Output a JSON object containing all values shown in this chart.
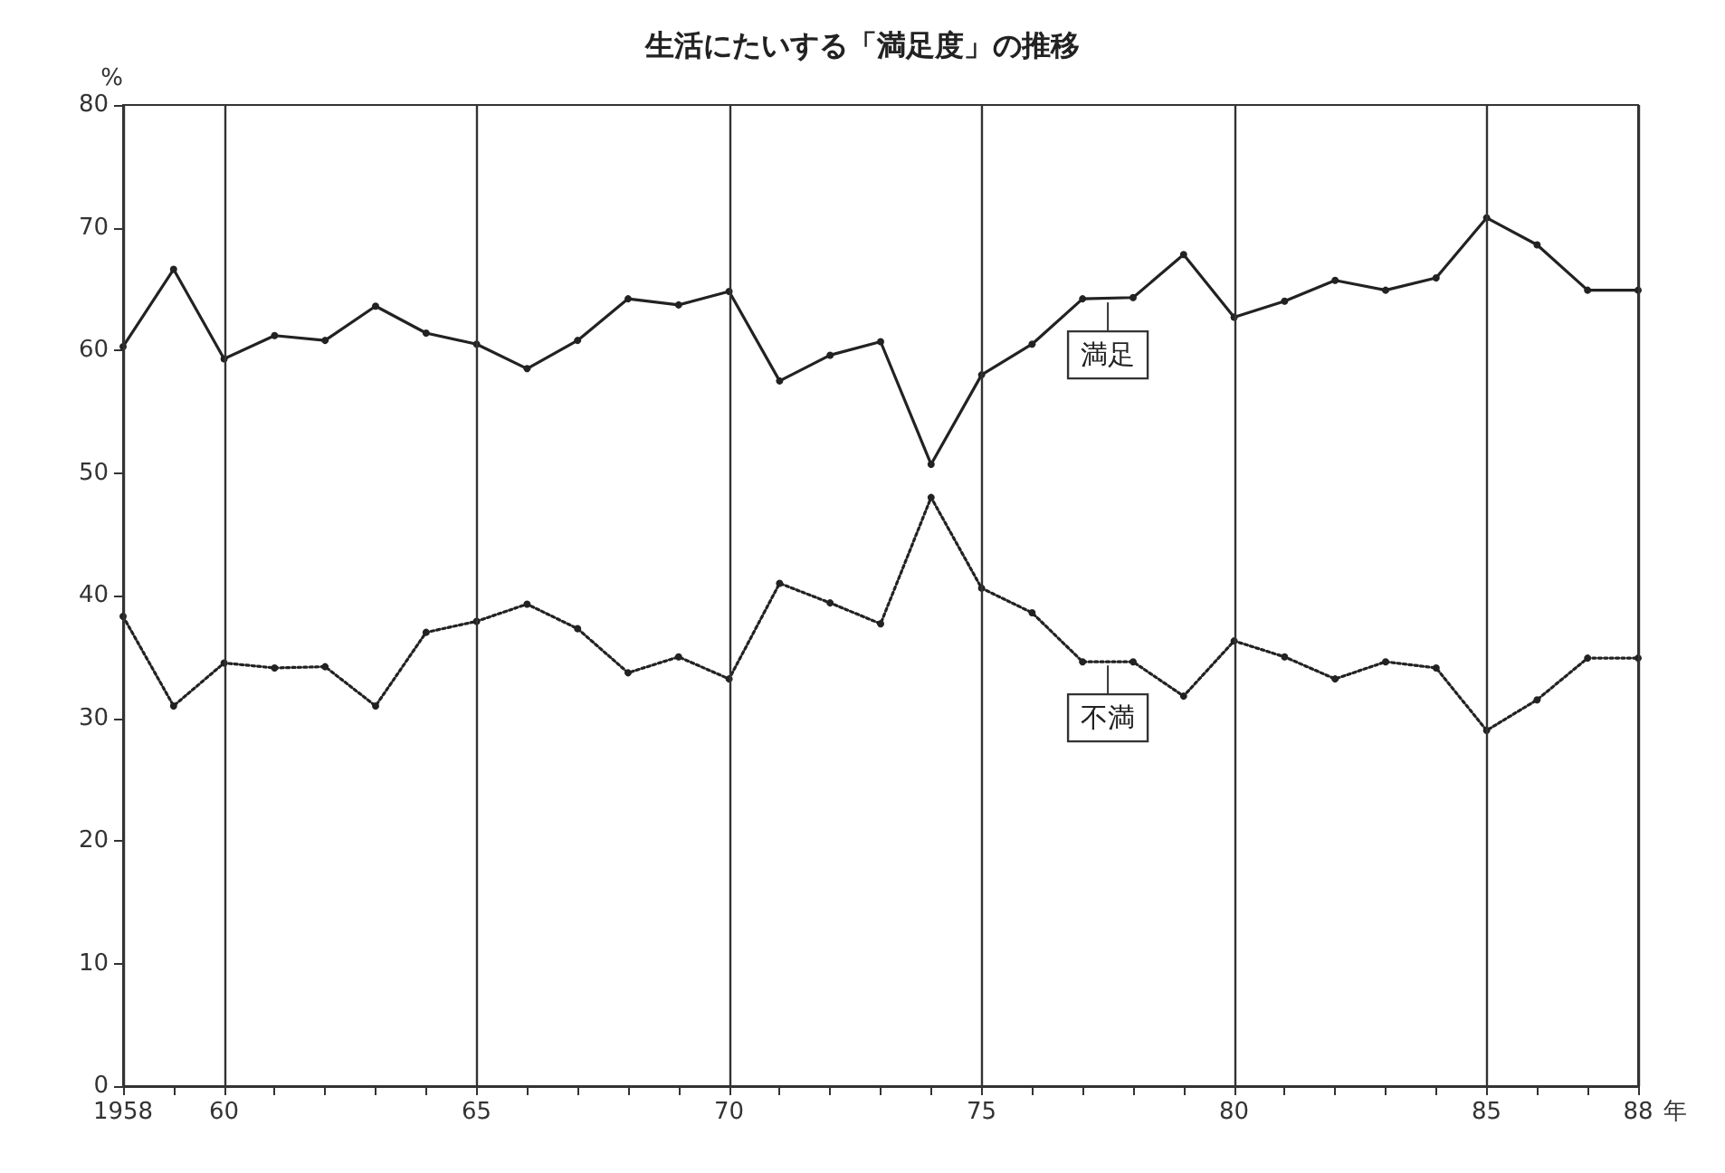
{
  "chart_data": {
    "type": "line",
    "title": "生活にたいする「満足度」の推移",
    "ylabel": "%",
    "x": [
      1958,
      1959,
      1960,
      1961,
      1962,
      1963,
      1964,
      1965,
      1966,
      1967,
      1968,
      1969,
      1970,
      1971,
      1972,
      1973,
      1974,
      1975,
      1976,
      1977,
      1978,
      1979,
      1980,
      1981,
      1982,
      1983,
      1984,
      1985,
      1986,
      1987,
      1988
    ],
    "series": [
      {
        "color": "#222222",
        "line_style": "solid",
        "values": [
          60.3,
          66.6,
          59.3,
          61.2,
          60.8,
          63.6,
          61.4,
          60.5,
          58.5,
          60.8,
          64.2,
          63.7,
          64.8,
          57.5,
          59.6,
          60.7,
          50.7,
          58,
          60.5,
          64.2,
          64.3,
          67.8,
          62.7,
          64,
          65.7,
          64.9,
          65.9,
          70.8,
          68.6,
          64.9,
          64.9
        ]
      },
      {
        "color": "#222222",
        "line_style": "dotted",
        "values": [
          38.3,
          31,
          34.5,
          34.1,
          34.2,
          31,
          37,
          37.9,
          39.3,
          37.3,
          33.7,
          35,
          33.2,
          41,
          39.4,
          37.7,
          48,
          40.6,
          38.6,
          34.6,
          34.6,
          31.8,
          36.3,
          35,
          33.2,
          34.6,
          34.1,
          29,
          31.5,
          34.9,
          34.9
        ]
      }
    ],
    "annotations": [
      {
        "text": "満足",
        "x": 1977.5,
        "y": 64.2
      },
      {
        "text": "不満",
        "x": 1977.5,
        "y": 34.6
      }
    ],
    "xlim": [
      1958,
      1988
    ],
    "xticks": [
      {
        "value": 1958,
        "label": "1958"
      },
      {
        "value": 1959,
        "label": null
      },
      {
        "value": 1960,
        "label": "60"
      },
      {
        "value": 1961,
        "label": null
      },
      {
        "value": 1962,
        "label": null
      },
      {
        "value": 1963,
        "label": null
      },
      {
        "value": 1964,
        "label": null
      },
      {
        "value": 1965,
        "label": "65"
      },
      {
        "value": 1966,
        "label": null
      },
      {
        "value": 1967,
        "label": null
      },
      {
        "value": 1968,
        "label": null
      },
      {
        "value": 1969,
        "label": null
      },
      {
        "value": 1970,
        "label": "70"
      },
      {
        "value": 1971,
        "label": null
      },
      {
        "value": 1972,
        "label": null
      },
      {
        "value": 1973,
        "label": null
      },
      {
        "value": 1974,
        "label": null
      },
      {
        "value": 1975,
        "label": "75"
      },
      {
        "value": 1976,
        "label": null
      },
      {
        "value": 1977,
        "label": null
      },
      {
        "value": 1978,
        "label": null
      },
      {
        "value": 1979,
        "label": null
      },
      {
        "value": 1980,
        "label": "80"
      },
      {
        "value": 1981,
        "label": null
      },
      {
        "value": 1982,
        "label": null
      },
      {
        "value": 1983,
        "label": null
      },
      {
        "value": 1984,
        "label": null
      },
      {
        "value": 1985,
        "label": "85"
      },
      {
        "value": 1986,
        "label": null
      },
      {
        "value": 1987,
        "label": null
      },
      {
        "value": 1988,
        "label": "88"
      }
    ],
    "xlabel": "年",
    "ylim": [
      0,
      80
    ],
    "yticks": [
      0,
      10,
      20,
      30,
      40,
      50,
      60,
      70,
      80
    ],
    "grid": "x",
    "marker": "circle"
  }
}
